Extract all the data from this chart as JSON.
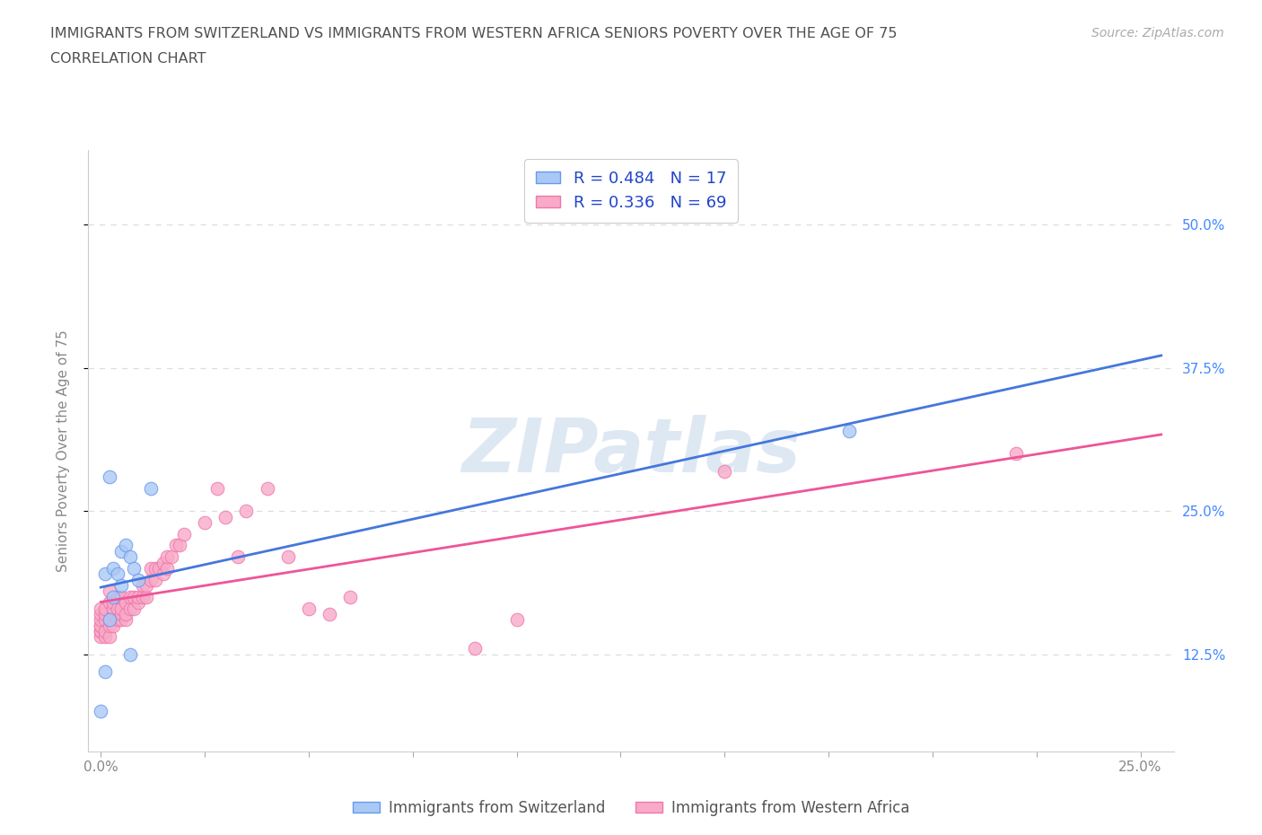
{
  "title_line1": "IMMIGRANTS FROM SWITZERLAND VS IMMIGRANTS FROM WESTERN AFRICA SENIORS POVERTY OVER THE AGE OF 75",
  "title_line2": "CORRELATION CHART",
  "source_text": "Source: ZipAtlas.com",
  "ylabel": "Seniors Poverty Over the Age of 75",
  "legend_label_1": "Immigrants from Switzerland",
  "legend_label_2": "Immigrants from Western Africa",
  "xlim": [
    -0.003,
    0.258
  ],
  "ylim": [
    0.04,
    0.565
  ],
  "xticks": [
    0.0,
    0.025,
    0.05,
    0.075,
    0.1,
    0.125,
    0.15,
    0.175,
    0.2,
    0.225,
    0.25
  ],
  "xticklabels_sparse": {
    "0": "0.0%",
    "10": "25.0%"
  },
  "yticks": [
    0.125,
    0.25,
    0.375,
    0.5
  ],
  "yticklabels": [
    "12.5%",
    "25.0%",
    "37.5%",
    "50.0%"
  ],
  "R_sw": 0.484,
  "N_sw": 17,
  "R_wa": 0.336,
  "N_wa": 69,
  "sw_face": "#aac8f5",
  "sw_edge": "#6699ee",
  "sw_line": "#4477dd",
  "wa_face": "#f8aac8",
  "wa_edge": "#ee77aa",
  "wa_line": "#ee5599",
  "watermark": "ZIPatlas",
  "watermark_color": "#ccdded",
  "sw_x": [
    0.0,
    0.001,
    0.001,
    0.002,
    0.002,
    0.003,
    0.003,
    0.004,
    0.005,
    0.005,
    0.006,
    0.007,
    0.007,
    0.008,
    0.009,
    0.012,
    0.18
  ],
  "sw_y": [
    0.075,
    0.11,
    0.195,
    0.155,
    0.28,
    0.175,
    0.2,
    0.195,
    0.185,
    0.215,
    0.22,
    0.21,
    0.125,
    0.2,
    0.19,
    0.27,
    0.32
  ],
  "wa_x": [
    0.0,
    0.0,
    0.0,
    0.0,
    0.0,
    0.0,
    0.0,
    0.0,
    0.001,
    0.001,
    0.001,
    0.001,
    0.001,
    0.002,
    0.002,
    0.002,
    0.002,
    0.002,
    0.003,
    0.003,
    0.003,
    0.003,
    0.004,
    0.004,
    0.004,
    0.005,
    0.005,
    0.005,
    0.005,
    0.006,
    0.006,
    0.006,
    0.007,
    0.007,
    0.008,
    0.008,
    0.009,
    0.009,
    0.01,
    0.01,
    0.011,
    0.011,
    0.012,
    0.012,
    0.013,
    0.013,
    0.014,
    0.015,
    0.015,
    0.016,
    0.016,
    0.017,
    0.018,
    0.019,
    0.02,
    0.025,
    0.028,
    0.03,
    0.033,
    0.035,
    0.04,
    0.045,
    0.05,
    0.055,
    0.06,
    0.09,
    0.1,
    0.15,
    0.22
  ],
  "wa_y": [
    0.14,
    0.145,
    0.145,
    0.15,
    0.15,
    0.155,
    0.16,
    0.165,
    0.14,
    0.145,
    0.155,
    0.16,
    0.165,
    0.14,
    0.15,
    0.155,
    0.17,
    0.18,
    0.15,
    0.16,
    0.165,
    0.17,
    0.155,
    0.165,
    0.175,
    0.155,
    0.16,
    0.165,
    0.175,
    0.155,
    0.16,
    0.17,
    0.165,
    0.175,
    0.165,
    0.175,
    0.17,
    0.175,
    0.175,
    0.185,
    0.175,
    0.185,
    0.19,
    0.2,
    0.19,
    0.2,
    0.2,
    0.195,
    0.205,
    0.2,
    0.21,
    0.21,
    0.22,
    0.22,
    0.23,
    0.24,
    0.27,
    0.245,
    0.21,
    0.25,
    0.27,
    0.21,
    0.165,
    0.16,
    0.175,
    0.13,
    0.155,
    0.285,
    0.3
  ],
  "grid_color": "#dddddd",
  "bg_color": "#ffffff",
  "title_color": "#505050",
  "axis_color": "#888888",
  "tick_color": "#aaaaaa"
}
